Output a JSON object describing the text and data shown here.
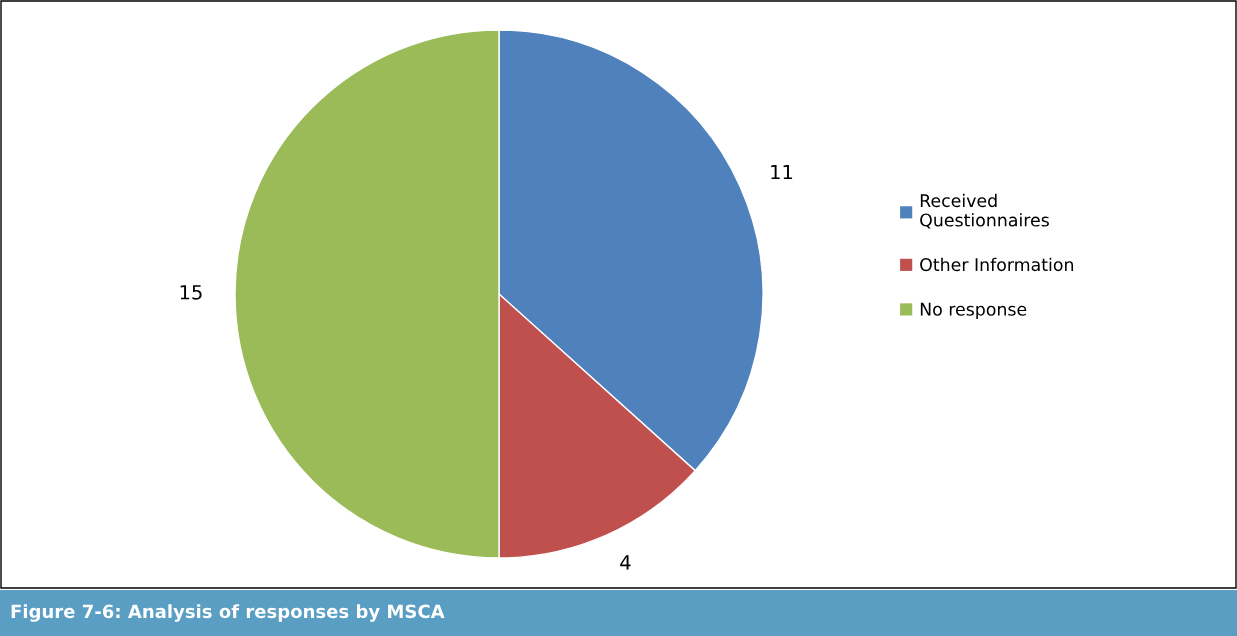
{
  "chart_data": {
    "type": "pie",
    "title": "Figure 7-6: Analysis of responses by MSCA",
    "categories": [
      "Received\nQuestionnaires",
      "Other Information",
      "No response"
    ],
    "values": [
      11,
      4,
      15
    ],
    "colors": [
      "#4f81bd",
      "#c0504d",
      "#9bbb59"
    ],
    "data_labels": true,
    "legend": "right"
  }
}
